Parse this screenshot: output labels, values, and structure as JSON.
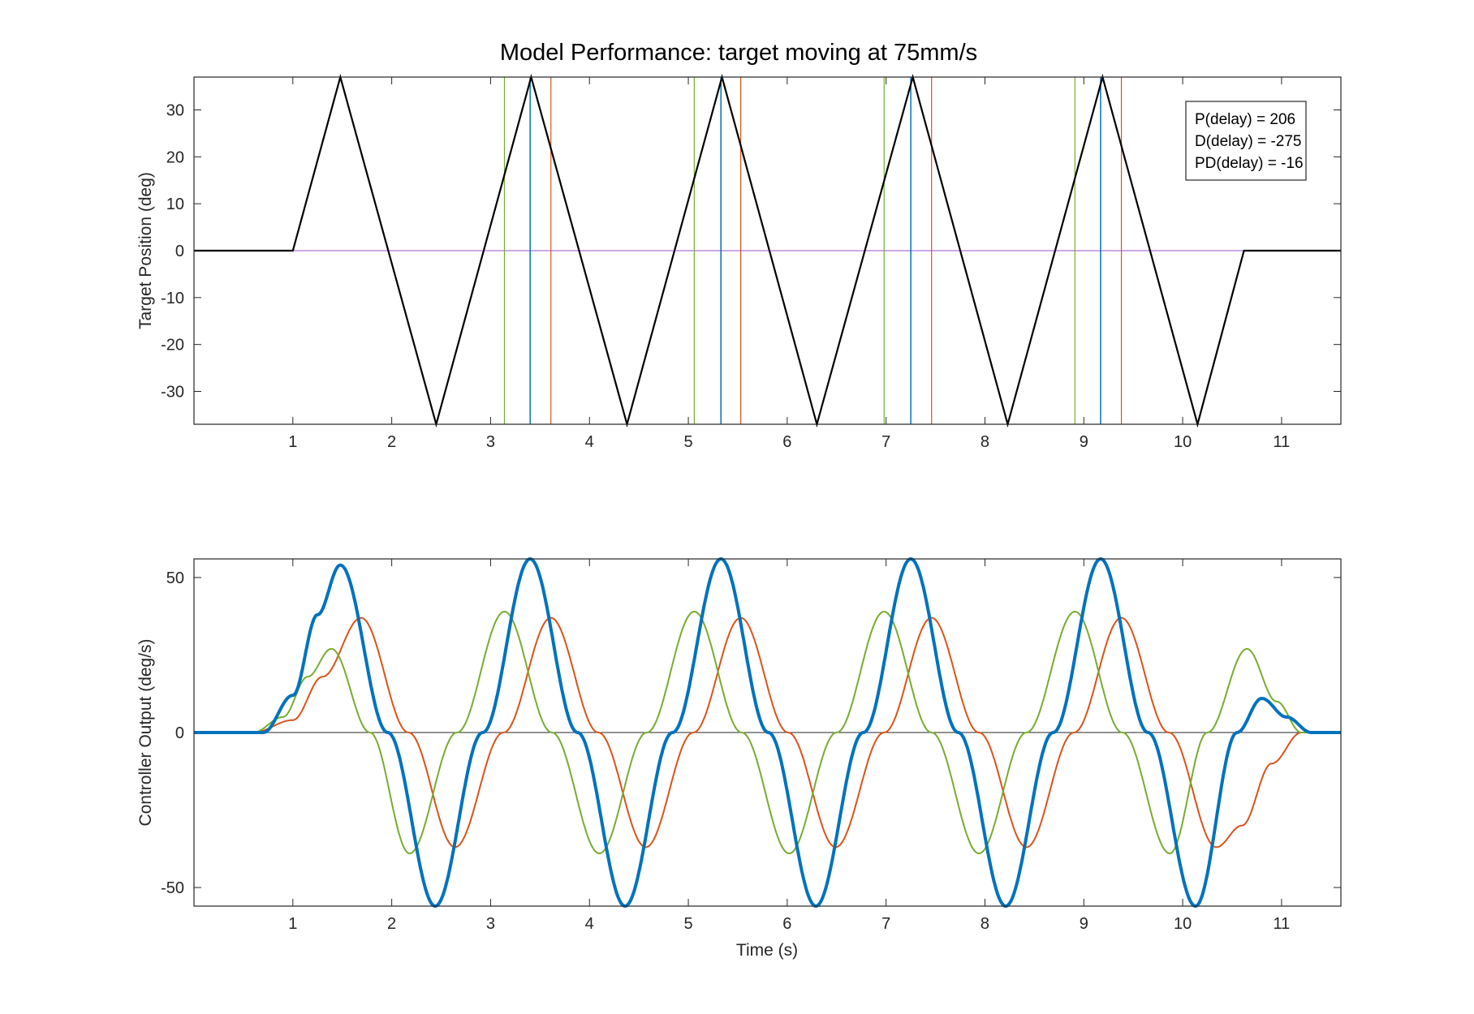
{
  "chart_data": [
    {
      "type": "line",
      "title": "Model Performance: target moving at 75mm/s",
      "xlabel": "",
      "ylabel": "Target Position (deg)",
      "xlim": [
        0,
        11.6
      ],
      "ylim": [
        -37,
        37
      ],
      "xticks": [
        1,
        2,
        3,
        4,
        5,
        6,
        7,
        8,
        9,
        10,
        11
      ],
      "yticks": [
        -30,
        -20,
        -10,
        0,
        10,
        20,
        30
      ],
      "grid": false,
      "box": true,
      "zero_line": {
        "value": 0,
        "color": "#9b4fd3"
      },
      "target": {
        "name": "Target position",
        "color": "#000000",
        "x": [
          0,
          1.0,
          1.48,
          2.45,
          3.41,
          4.38,
          5.34,
          6.3,
          7.27,
          8.23,
          9.19,
          10.15,
          10.62,
          11.6
        ],
        "y": [
          0,
          0,
          37,
          -37,
          37,
          -37,
          37,
          -37,
          37,
          -37,
          37,
          -37,
          0,
          0
        ]
      },
      "vlines": [
        {
          "series": "P",
          "color": "#77ac30",
          "x": [
            3.14,
            5.06,
            6.98,
            8.91
          ]
        },
        {
          "series": "PD",
          "color": "#0072bd",
          "x": [
            3.4,
            5.33,
            7.25,
            9.17
          ]
        },
        {
          "series": "D",
          "color": "#d95319",
          "x": [
            3.61,
            5.53,
            7.46,
            9.38
          ]
        }
      ],
      "legend": {
        "location": "top-right",
        "entries": [
          "P(delay) = 206",
          "D(delay) = -275",
          "PD(delay) = -16"
        ]
      }
    },
    {
      "type": "line",
      "title": "",
      "xlabel": "Time (s)",
      "ylabel": "Controller Output (deg/s)",
      "xlim": [
        0,
        11.6
      ],
      "ylim": [
        -56,
        56
      ],
      "xticks": [
        1,
        2,
        3,
        4,
        5,
        6,
        7,
        8,
        9,
        10,
        11
      ],
      "yticks": [
        -50,
        0,
        50
      ],
      "grid": false,
      "box": true,
      "zero_line": {
        "value": 0,
        "color": "#262626"
      },
      "series": [
        {
          "name": "D",
          "color": "#d95319",
          "x": [
            0,
            0.6,
            1.0,
            1.3,
            1.69,
            2.17,
            2.64,
            3.13,
            3.61,
            4.09,
            4.57,
            5.05,
            5.53,
            6.01,
            6.49,
            6.98,
            7.46,
            7.94,
            8.42,
            8.9,
            9.38,
            9.86,
            10.34,
            10.6,
            10.9,
            11.2,
            11.6
          ],
          "y": [
            0,
            0,
            4,
            18,
            37,
            0,
            -37,
            0,
            37,
            0,
            -37,
            0,
            37,
            0,
            -37,
            0,
            37,
            0,
            -37,
            0,
            37,
            0,
            -37,
            -30,
            -10,
            0,
            0
          ]
        },
        {
          "name": "P",
          "color": "#77ac30",
          "x": [
            0,
            0.6,
            0.9,
            1.15,
            1.39,
            1.78,
            2.18,
            2.66,
            3.14,
            3.62,
            4.1,
            4.58,
            5.06,
            5.54,
            6.02,
            6.5,
            6.98,
            7.46,
            7.94,
            8.42,
            8.91,
            9.39,
            9.87,
            10.25,
            10.65,
            10.95,
            11.2,
            11.6
          ],
          "y": [
            0,
            0,
            5,
            18,
            27,
            0,
            -39,
            0,
            39,
            0,
            -39,
            0,
            39,
            0,
            -39,
            0,
            39,
            0,
            -39,
            0,
            39,
            0,
            -39,
            0,
            27,
            10,
            0,
            0
          ]
        },
        {
          "name": "PD",
          "color": "#0072bd",
          "x": [
            0,
            0.7,
            1.0,
            1.25,
            1.48,
            1.96,
            2.44,
            2.92,
            3.4,
            3.88,
            4.36,
            4.84,
            5.33,
            5.81,
            6.29,
            6.77,
            7.25,
            7.73,
            8.21,
            8.69,
            9.17,
            9.65,
            10.13,
            10.55,
            10.8,
            11.05,
            11.3,
            11.6
          ],
          "y": [
            0,
            0,
            12,
            38,
            54,
            0,
            -56,
            0,
            56,
            0,
            -56,
            0,
            56,
            0,
            -56,
            0,
            56,
            0,
            -56,
            0,
            56,
            0,
            -56,
            0,
            11,
            5,
            0,
            0
          ]
        }
      ]
    }
  ]
}
